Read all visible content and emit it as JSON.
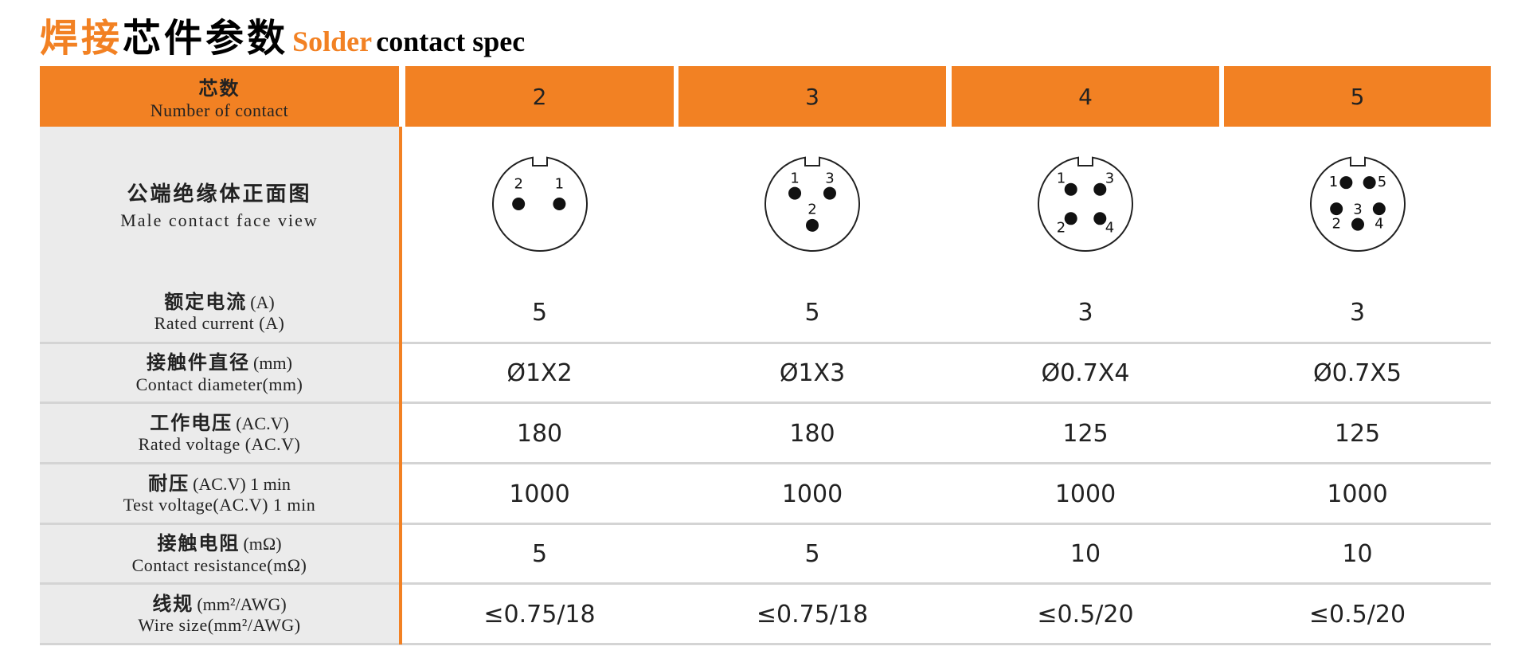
{
  "title": {
    "cn_accent": "焊接",
    "cn": "芯件参数",
    "en_accent": "Solder",
    "en": "contact spec"
  },
  "header": {
    "cn": "芯数",
    "en": "Number of contact",
    "columns": [
      "2",
      "3",
      "4",
      "5"
    ]
  },
  "face_view": {
    "cn": "公端绝缘体正面图",
    "en": "Male contact face view",
    "pins": [
      [
        "2",
        "1"
      ],
      [
        "1",
        "3",
        "2"
      ],
      [
        "1",
        "3",
        "2",
        "4"
      ],
      [
        "1",
        "5",
        "3",
        "2",
        "4"
      ]
    ]
  },
  "rows": [
    {
      "cn": "额定电流",
      "unit": "(A)",
      "en": "Rated current (A)",
      "values": [
        5,
        5,
        3,
        3
      ]
    },
    {
      "cn": "接触件直径",
      "unit": "(mm)",
      "en": "Contact diameter(mm)",
      "values": [
        "Ø1X2",
        "Ø1X3",
        "Ø0.7X4",
        "Ø0.7X5"
      ]
    },
    {
      "cn": "工作电压",
      "unit": "(AC.V)",
      "en": "Rated voltage (AC.V)",
      "values": [
        180,
        180,
        125,
        125
      ]
    },
    {
      "cn": "耐压",
      "unit": "(AC.V) 1 min",
      "en": "Test voltage(AC.V) 1 min",
      "values": [
        1000,
        1000,
        1000,
        1000
      ]
    },
    {
      "cn": "接触电阻",
      "unit": "(mΩ)",
      "en": "Contact resistance(mΩ)",
      "values": [
        5,
        5,
        10,
        10
      ]
    },
    {
      "cn": "线规",
      "unit": "(mm²/AWG)",
      "en": "Wire size(mm²/AWG)",
      "values": [
        "≤0.75/18",
        "≤0.75/18",
        "≤0.5/20",
        "≤0.5/20"
      ]
    }
  ]
}
